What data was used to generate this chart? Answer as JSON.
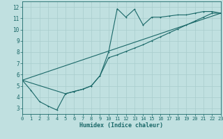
{
  "xlabel": "Humidex (Indice chaleur)",
  "bg_color": "#c0e0e0",
  "line_color": "#1a6868",
  "grid_color": "#a8cccc",
  "xlim": [
    0,
    23
  ],
  "ylim": [
    2.5,
    12.5
  ],
  "xticks": [
    0,
    1,
    2,
    3,
    4,
    5,
    6,
    7,
    8,
    9,
    10,
    11,
    12,
    13,
    14,
    15,
    16,
    17,
    18,
    19,
    20,
    21,
    22,
    23
  ],
  "yticks": [
    3,
    4,
    5,
    6,
    7,
    8,
    9,
    10,
    11,
    12
  ],
  "curve1_x": [
    0,
    1,
    2,
    3,
    4,
    5,
    6,
    7,
    8,
    9,
    10,
    11,
    12,
    13,
    14,
    15,
    16,
    17,
    18,
    19,
    20,
    21,
    22,
    23
  ],
  "curve1_y": [
    5.5,
    4.6,
    3.6,
    3.2,
    2.85,
    4.3,
    4.5,
    4.7,
    5.0,
    5.9,
    8.0,
    11.85,
    11.1,
    11.8,
    10.4,
    11.1,
    11.1,
    11.2,
    11.3,
    11.3,
    11.45,
    11.6,
    11.6,
    11.45
  ],
  "curve2_x": [
    0,
    5,
    6,
    7,
    8,
    9,
    10,
    11,
    12,
    13,
    14,
    15,
    16,
    17,
    18,
    19,
    20,
    21,
    22,
    23
  ],
  "curve2_y": [
    5.5,
    4.3,
    4.5,
    4.7,
    5.0,
    5.9,
    7.5,
    7.75,
    8.05,
    8.35,
    8.65,
    9.0,
    9.35,
    9.7,
    10.05,
    10.4,
    10.75,
    11.1,
    11.45,
    11.45
  ],
  "curve3_x": [
    0,
    23
  ],
  "curve3_y": [
    5.5,
    11.45
  ],
  "xlabel_fontsize": 6.0,
  "tick_fontsize": 5.0,
  "lw": 0.8,
  "ms": 2.0
}
